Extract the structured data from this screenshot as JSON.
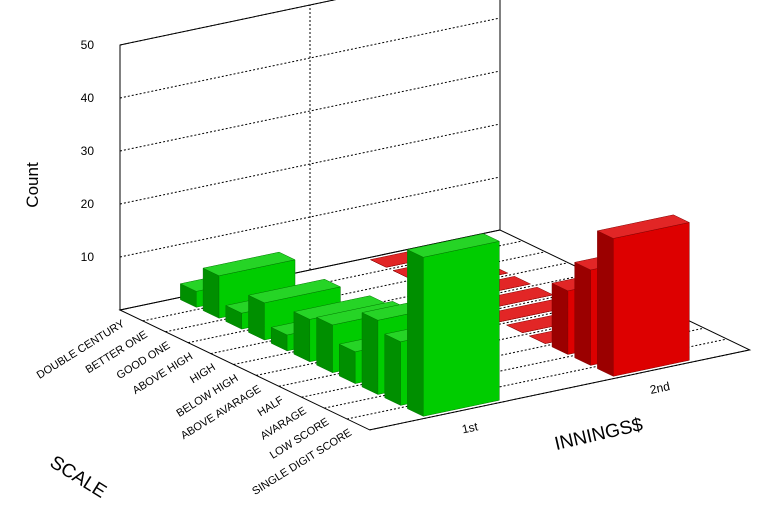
{
  "chart_data": {
    "type": "bar3d",
    "y_label": "Count",
    "x_label": "SCALE",
    "z_label": "INNINGS$",
    "categories": [
      "DOUBLE CENTURY",
      "BETTER ONE",
      "GOOD ONE",
      "ABOVE HIGH",
      "HIGH",
      "BELOW HIGH",
      "ABOVE AVARAGE",
      "HALF",
      "AVARAGE",
      "LOW SCORE",
      "SINGLE DIGIT SCORE"
    ],
    "series": [
      {
        "name": "1st",
        "color": "#00cc00",
        "values": [
          3,
          8,
          3,
          7,
          3,
          8,
          9,
          6,
          14,
          12,
          30
        ]
      },
      {
        "name": "2nd",
        "color": "#dd0000",
        "values": [
          0,
          0,
          0,
          0,
          0,
          0,
          0,
          0,
          12,
          18,
          26
        ]
      }
    ],
    "ylim": [
      0,
      50
    ],
    "yticks": [
      10,
      20,
      30,
      40,
      50
    ],
    "grid": true
  }
}
